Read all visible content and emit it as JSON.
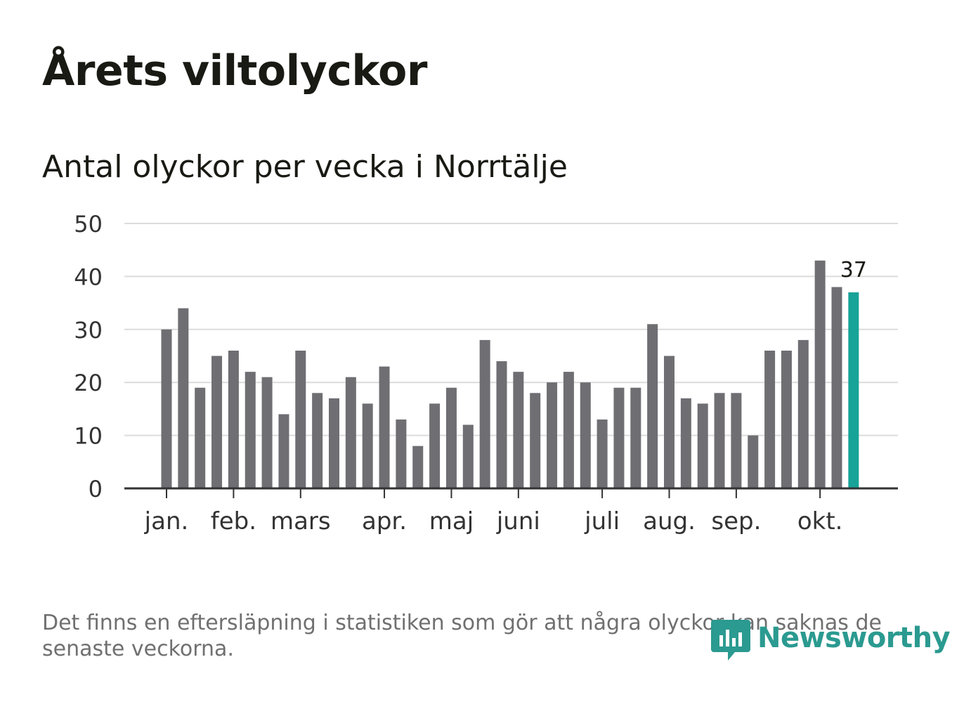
{
  "header": {
    "title": "Årets viltolyckor",
    "subtitle": "Antal olyckor per vecka i Norrtälje"
  },
  "footer": {
    "note": "Det finns en eftersläpning i statistiken som gör att några olyckor kan saknas de senaste veckorna.",
    "brand": "Newsworthy"
  },
  "colors": {
    "bar": "#6f6e73",
    "highlight": "#17a398",
    "grid": "#dcdcdc",
    "axis": "#333333",
    "brand": "#2b9a90"
  },
  "icons": {
    "logo": "newsworthy-chart-bubble-icon"
  },
  "chart_data": {
    "type": "bar",
    "title": "Antal olyckor per vecka i Norrtälje",
    "xlabel": "",
    "ylabel": "",
    "ylim": [
      0,
      50
    ],
    "yticks": [
      0,
      10,
      20,
      30,
      40,
      50
    ],
    "grid": true,
    "values": [
      30,
      34,
      19,
      25,
      26,
      22,
      21,
      14,
      26,
      18,
      17,
      21,
      16,
      23,
      13,
      8,
      16,
      19,
      12,
      28,
      24,
      22,
      18,
      20,
      22,
      20,
      13,
      19,
      19,
      31,
      25,
      17,
      16,
      18,
      18,
      10,
      26,
      26,
      28,
      43,
      38,
      37
    ],
    "highlight_index": 41,
    "highlight_label": "37",
    "month_ticks": [
      {
        "label": "jan.",
        "week": 0.5
      },
      {
        "label": "feb.",
        "week": 4.5
      },
      {
        "label": "mars",
        "week": 8.5
      },
      {
        "label": "apr.",
        "week": 13.5
      },
      {
        "label": "maj",
        "week": 17.5
      },
      {
        "label": "juni",
        "week": 21.5
      },
      {
        "label": "juli",
        "week": 26.5
      },
      {
        "label": "aug.",
        "week": 30.5
      },
      {
        "label": "sep.",
        "week": 34.5
      },
      {
        "label": "okt.",
        "week": 39.5
      }
    ]
  }
}
